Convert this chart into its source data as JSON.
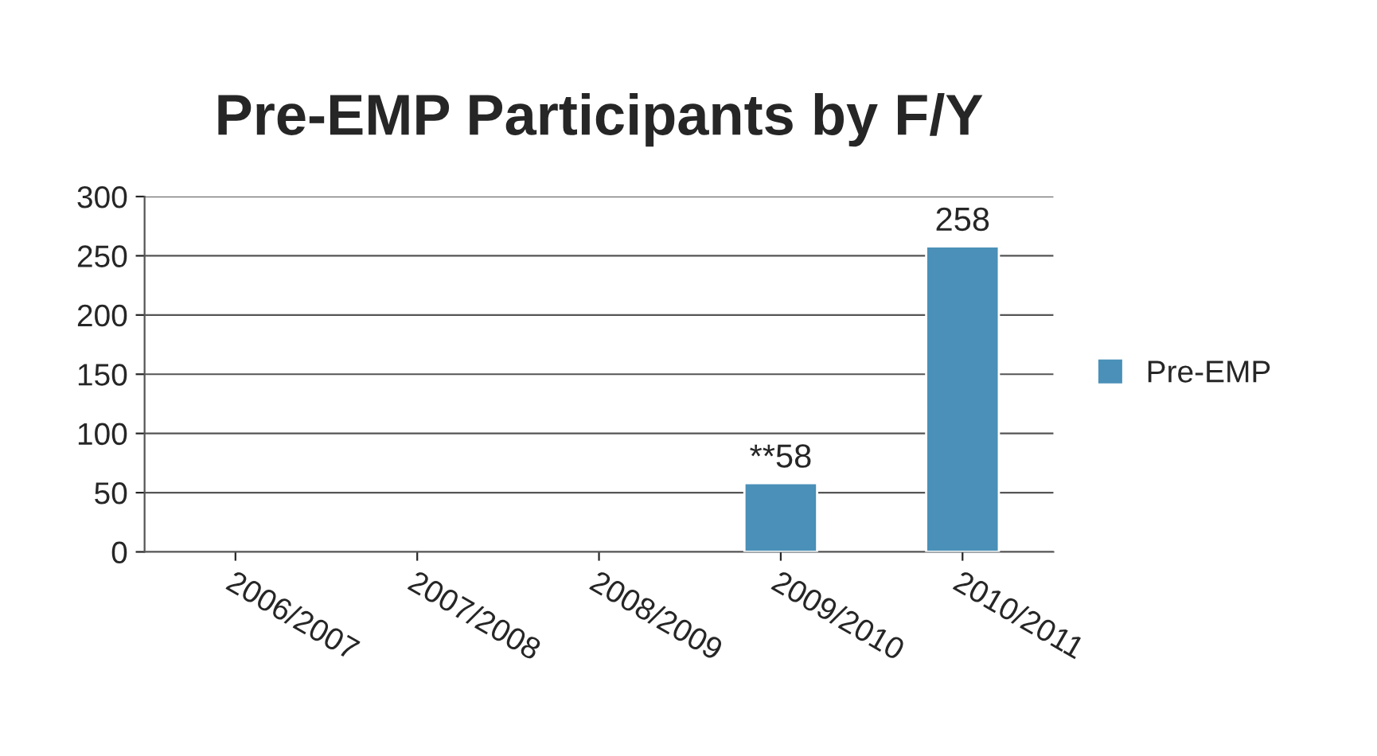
{
  "chart_data": {
    "type": "bar",
    "title": "Pre-EMP Participants by F/Y",
    "categories": [
      "2006/2007",
      "2007/2008",
      "2008/2009",
      "2009/2010",
      "2010/2011"
    ],
    "series": [
      {
        "name": "Pre-EMP",
        "color": "#4a90b8",
        "values": [
          null,
          null,
          null,
          58,
          258
        ],
        "value_labels": [
          null,
          null,
          null,
          "**58",
          "258"
        ]
      }
    ],
    "ylim": [
      0,
      300
    ],
    "yticks": [
      0,
      50,
      100,
      150,
      200,
      250,
      300
    ],
    "grid": "y",
    "legend": "right"
  }
}
